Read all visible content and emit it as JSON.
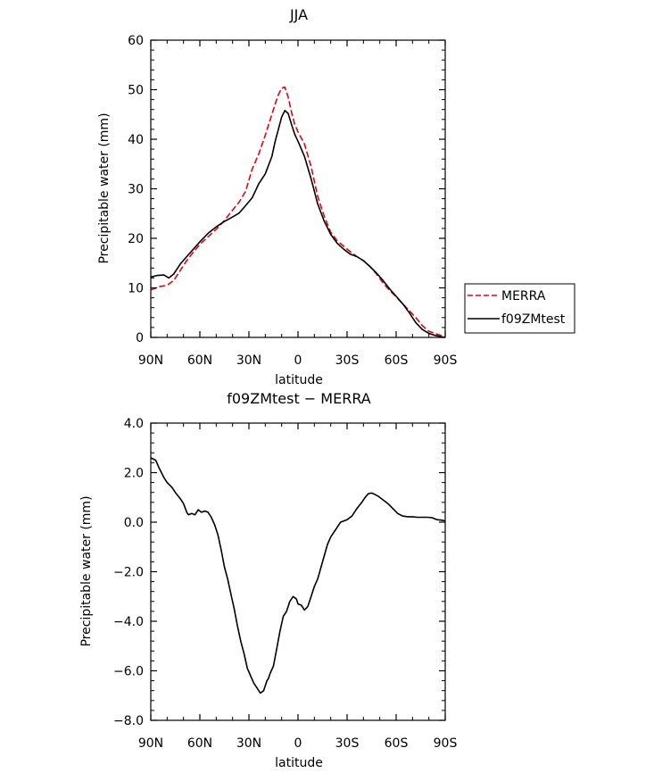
{
  "chart_data": [
    {
      "type": "line",
      "title": "JJA",
      "xlabel": "latitude",
      "ylabel": "Precipitable water (mm)",
      "xlim": [
        90,
        -90
      ],
      "ylim": [
        0,
        60
      ],
      "x_ticks": [
        90,
        60,
        30,
        0,
        -30,
        -60,
        -90
      ],
      "x_tick_labels": [
        "90N",
        "60N",
        "30N",
        "0",
        "30S",
        "60S",
        "90S"
      ],
      "y_ticks": [
        0,
        10,
        20,
        30,
        40,
        50,
        60
      ],
      "y_tick_labels": [
        "0",
        "10",
        "20",
        "30",
        "40",
        "50",
        "60"
      ],
      "legend": "right",
      "series": [
        {
          "name": "MERRA",
          "color": "#e8000b",
          "dash": "dashed",
          "x": [
            90,
            84,
            80,
            76,
            72,
            68,
            64,
            60,
            55,
            50,
            45,
            40,
            36,
            32,
            28,
            24,
            20,
            16,
            14,
            12,
            10,
            8,
            6,
            4,
            2,
            0,
            -4,
            -8,
            -12,
            -16,
            -20,
            -24,
            -28,
            -32,
            -36,
            -40,
            -44,
            -48,
            -52,
            -56,
            -60,
            -64,
            -68,
            -72,
            -76,
            -80,
            -84,
            -88,
            -90
          ],
          "y": [
            9.6,
            10.3,
            10.5,
            11.5,
            13.5,
            15.5,
            17.2,
            18.8,
            20.3,
            21.8,
            23.6,
            25.7,
            27.3,
            29.5,
            34.0,
            37.0,
            40.8,
            45.0,
            47.0,
            49.0,
            50.3,
            50.5,
            48.5,
            45.5,
            43.0,
            41.5,
            39.0,
            34.5,
            28.5,
            24.5,
            21.2,
            19.5,
            18.4,
            17.3,
            16.3,
            15.5,
            14.3,
            12.8,
            11.0,
            9.5,
            8.2,
            6.8,
            5.4,
            4.0,
            2.4,
            1.2,
            0.8,
            0.3,
            0.1
          ]
        },
        {
          "name": "f09ZMtest",
          "color": "#000000",
          "dash": "solid",
          "x": [
            90,
            86,
            82,
            79,
            76,
            72,
            68,
            64,
            60,
            55,
            50,
            45,
            40,
            36,
            32,
            28,
            24,
            20,
            16,
            14,
            12,
            10,
            8,
            6,
            4,
            2,
            0,
            -4,
            -8,
            -12,
            -16,
            -20,
            -24,
            -28,
            -32,
            -36,
            -40,
            -44,
            -48,
            -52,
            -56,
            -60,
            -64,
            -68,
            -72,
            -76,
            -80,
            -84,
            -88,
            -90
          ],
          "y": [
            12.2,
            12.5,
            12.6,
            12.0,
            12.8,
            14.8,
            16.3,
            17.8,
            19.3,
            21.0,
            22.3,
            23.4,
            24.3,
            25.1,
            26.6,
            28.2,
            31.0,
            33.0,
            36.5,
            39.5,
            42.0,
            44.5,
            45.8,
            45.2,
            43.0,
            41.0,
            39.6,
            36.5,
            32.0,
            27.0,
            23.5,
            20.8,
            19.0,
            17.8,
            16.8,
            16.3,
            15.5,
            14.3,
            13.0,
            11.5,
            9.8,
            8.3,
            6.8,
            5.0,
            3.0,
            1.6,
            0.8,
            0.4,
            0.1,
            0.0
          ]
        }
      ]
    },
    {
      "type": "line",
      "title": "f09ZMtest − MERRA",
      "xlabel": "latitude",
      "ylabel": "Precipitable water (mm)",
      "xlim": [
        90,
        -90
      ],
      "ylim": [
        -8,
        4
      ],
      "x_ticks": [
        90,
        60,
        30,
        0,
        -30,
        -60,
        -90
      ],
      "x_tick_labels": [
        "90N",
        "60N",
        "30N",
        "0",
        "30S",
        "60S",
        "90S"
      ],
      "y_ticks": [
        -8,
        -6,
        -4,
        -2,
        0,
        2,
        4
      ],
      "y_tick_labels": [
        "−8.0",
        "−6.0",
        "−4.0",
        "−2.0",
        "0.0",
        "2.0",
        "4.0"
      ],
      "series": [
        {
          "color": "#000000",
          "dash": "solid",
          "x": [
            90,
            87,
            85,
            82,
            80,
            77,
            75,
            72,
            70,
            68,
            67,
            65,
            63,
            61,
            59,
            57,
            55,
            53,
            51,
            49,
            47,
            45,
            43,
            41,
            39,
            37,
            35,
            33,
            31,
            29,
            27,
            25,
            23,
            21,
            19,
            18,
            17,
            15,
            13,
            11,
            9,
            7,
            5,
            3,
            1,
            0,
            -2,
            -4,
            -6,
            -8,
            -10,
            -12,
            -15,
            -18,
            -20,
            -23,
            -26,
            -30,
            -33,
            -36,
            -39,
            -41,
            -43,
            -45,
            -47,
            -49,
            -52,
            -55,
            -58,
            -61,
            -64,
            -67,
            -70,
            -73,
            -76,
            -79,
            -82,
            -85,
            -88,
            -90
          ],
          "y": [
            2.6,
            2.5,
            2.2,
            1.8,
            1.6,
            1.4,
            1.2,
            0.95,
            0.75,
            0.4,
            0.3,
            0.35,
            0.3,
            0.5,
            0.4,
            0.45,
            0.4,
            0.2,
            -0.1,
            -0.5,
            -1.1,
            -1.8,
            -2.3,
            -2.9,
            -3.5,
            -4.2,
            -4.8,
            -5.3,
            -5.9,
            -6.2,
            -6.5,
            -6.7,
            -6.9,
            -6.8,
            -6.4,
            -6.3,
            -6.1,
            -5.8,
            -5.1,
            -4.4,
            -3.8,
            -3.6,
            -3.2,
            -3.0,
            -3.1,
            -3.3,
            -3.35,
            -3.55,
            -3.4,
            -3.0,
            -2.6,
            -2.3,
            -1.6,
            -0.9,
            -0.6,
            -0.3,
            0.0,
            0.1,
            0.25,
            0.55,
            0.8,
            1.0,
            1.15,
            1.18,
            1.12,
            1.05,
            0.9,
            0.75,
            0.55,
            0.35,
            0.25,
            0.22,
            0.22,
            0.2,
            0.2,
            0.2,
            0.18,
            0.1,
            0.08,
            0.05
          ]
        }
      ]
    }
  ]
}
